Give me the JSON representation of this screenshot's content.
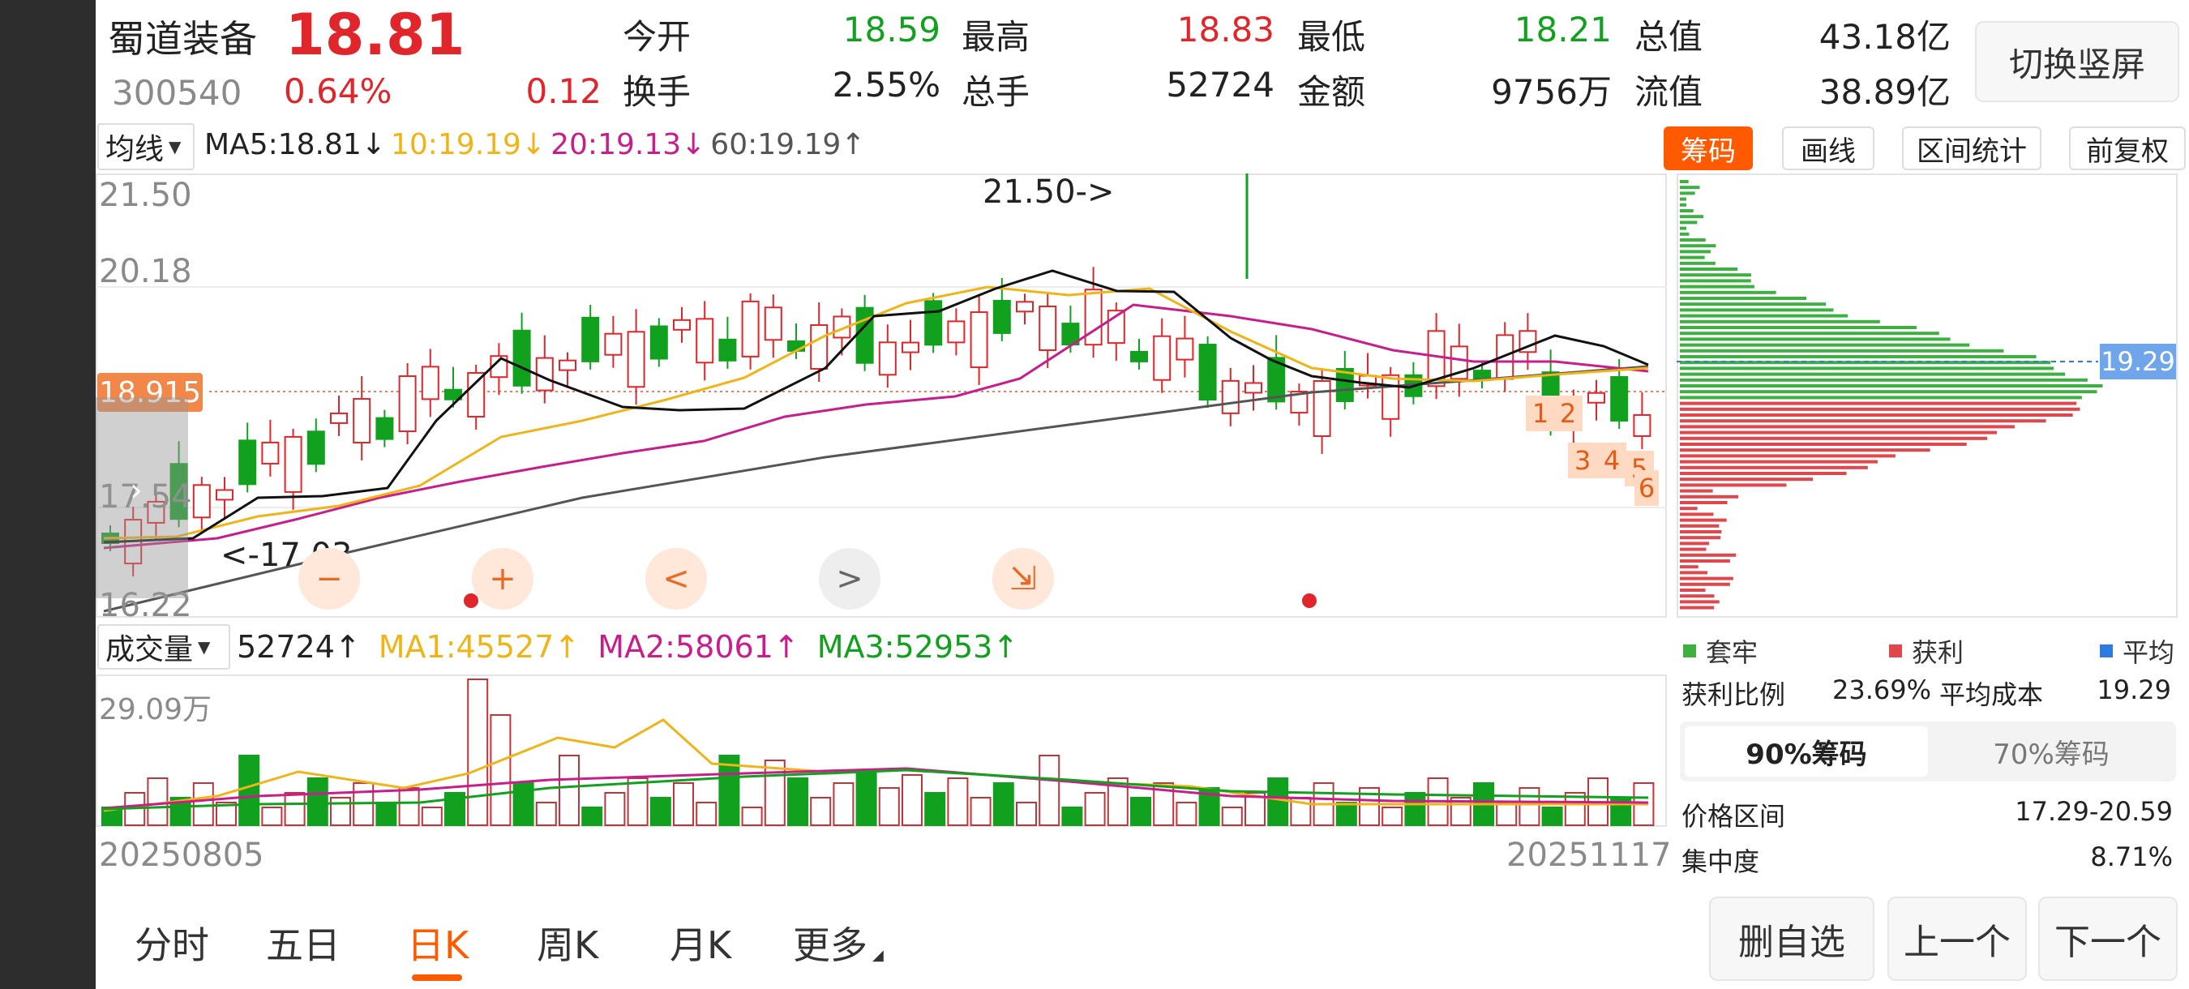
{
  "header": {
    "name": "蜀道装备",
    "price": "18.81",
    "code": "300540",
    "change_pct": "0.64%",
    "change": "0.12",
    "stats": [
      {
        "label": "今开",
        "value": "18.59",
        "color": "#11a11f"
      },
      {
        "label": "最高",
        "value": "18.83",
        "color": "#e0262b"
      },
      {
        "label": "最低",
        "value": "18.21",
        "color": "#11a11f"
      },
      {
        "label": "总值",
        "value": "43.18亿",
        "color": "#222222"
      },
      {
        "label": "换手",
        "value": "2.55%",
        "color": "#222222"
      },
      {
        "label": "总手",
        "value": "52724",
        "color": "#222222"
      },
      {
        "label": "金额",
        "value": "9756万",
        "color": "#222222"
      },
      {
        "label": "流值",
        "value": "38.89亿",
        "color": "#222222"
      }
    ],
    "switch_button": "切换竖屏"
  },
  "ma_bar": {
    "dropdown": "均线",
    "items": [
      {
        "text": "MA5:18.81↓",
        "color": "#222222"
      },
      {
        "text": "10:19.19↓",
        "color": "#f0b418"
      },
      {
        "text": "20:19.13↓",
        "color": "#c81e8c"
      },
      {
        "text": "60:19.19↑",
        "color": "#555555"
      }
    ]
  },
  "tools": {
    "chips": "筹码",
    "draw": "画线",
    "range": "区间统计",
    "adjust": "前复权"
  },
  "price_axis": {
    "labels": [
      "21.50",
      "20.18",
      "17.54",
      "16.22"
    ],
    "current": "18.915",
    "high_note": "21.50->",
    "low_note": "<-17.03"
  },
  "markers": [
    "1",
    "2",
    "3",
    "4",
    "5",
    "6"
  ],
  "nav_controls": {
    "zoom_out": "−",
    "zoom_in": "+",
    "prev": "<",
    "next": ">",
    "collapse": "⇲"
  },
  "volume_bar": {
    "dropdown": "成交量",
    "items": [
      {
        "text": "52724↑",
        "color": "#222222"
      },
      {
        "text": "MA1:45527↑",
        "color": "#f0b418"
      },
      {
        "text": "MA2:58061↑",
        "color": "#c81e8c"
      },
      {
        "text": "MA3:52953↑",
        "color": "#11a11f"
      }
    ],
    "max_label": "29.09万"
  },
  "date_axis": {
    "start": "20250805",
    "end": "20251117"
  },
  "chip_panel": {
    "avg_label": "19.29",
    "legend": [
      {
        "label": "套牢",
        "color": "#3db041"
      },
      {
        "label": "获利",
        "color": "#e0474c"
      },
      {
        "label": "平均",
        "color": "#2d7be0"
      }
    ],
    "profit_ratio_label": "获利比例",
    "profit_ratio": "23.69%",
    "avg_cost_label": "平均成本",
    "avg_cost": "19.29",
    "tab_90": "90%筹码",
    "tab_70": "70%筹码",
    "range_label": "价格区间",
    "range_value": "17.29-20.59",
    "conc_label": "集中度",
    "conc_value": "8.71%"
  },
  "bottom_tabs": [
    "分时",
    "五日",
    "日K",
    "周K",
    "月K",
    "更多"
  ],
  "bottom_buttons": {
    "delete": "删自选",
    "prev": "上一个",
    "next": "下一个"
  },
  "colors": {
    "up": "#e0262b",
    "down": "#11a11f",
    "accent": "#ff5a00"
  }
}
